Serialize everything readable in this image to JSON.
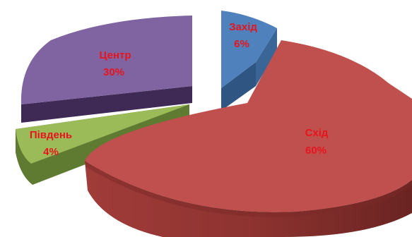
{
  "chart_data": {
    "type": "pie",
    "style": "3d-exploded",
    "slices": [
      {
        "label": "Захід",
        "value": 6,
        "pct_label": "6%",
        "color": "#4f81bd"
      },
      {
        "label": "Схід",
        "value": 60,
        "pct_label": "60%",
        "color": "#c0504d"
      },
      {
        "label": "Південь",
        "value": 4,
        "pct_label": "4%",
        "color": "#9bbb59"
      },
      {
        "label": "Центр",
        "value": 30,
        "pct_label": "30%",
        "color": "#8064a2"
      }
    ],
    "label_color": "#e8141c",
    "title": "",
    "legend": "none"
  }
}
